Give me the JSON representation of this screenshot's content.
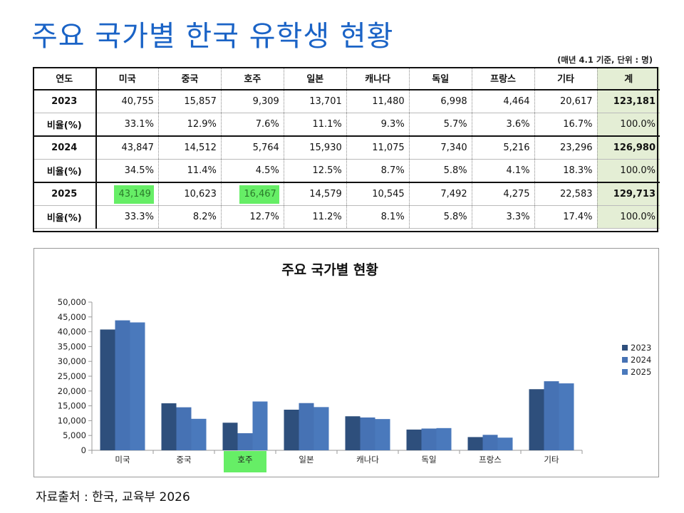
{
  "title": "주요 국가별 한국 유학생 현황",
  "note": "(매년 4.1 기준, 단위 : 명)",
  "table": {
    "headers": [
      "연도",
      "미국",
      "중국",
      "호주",
      "일본",
      "캐나다",
      "독일",
      "프랑스",
      "기타",
      "계"
    ],
    "rows": [
      {
        "label": "2023",
        "values": [
          "40,755",
          "15,857",
          "9,309",
          "13,701",
          "11,480",
          "6,998",
          "4,464",
          "20,617"
        ],
        "total": "123,181"
      },
      {
        "label": "비율(%)",
        "values": [
          "33.1%",
          "12.9%",
          "7.6%",
          "11.1%",
          "9.3%",
          "5.7%",
          "3.6%",
          "16.7%"
        ],
        "total": "100.0%"
      },
      {
        "label": "2024",
        "values": [
          "43,847",
          "14,512",
          "5,764",
          "15,930",
          "11,075",
          "7,340",
          "5,216",
          "23,296"
        ],
        "total": "126,980"
      },
      {
        "label": "비율(%)",
        "values": [
          "34.5%",
          "11.4%",
          "4.5%",
          "12.5%",
          "8.7%",
          "5.8%",
          "4.1%",
          "18.3%"
        ],
        "total": "100.0%"
      },
      {
        "label": "2025",
        "values": [
          "43,149",
          "10,623",
          "16,467",
          "14,579",
          "10,545",
          "7,492",
          "4,275",
          "22,583"
        ],
        "total": "129,713"
      },
      {
        "label": "비율(%)",
        "values": [
          "33.3%",
          "8.2%",
          "12.7%",
          "11.2%",
          "8.1%",
          "5.8%",
          "3.3%",
          "17.4%"
        ],
        "total": "100.0%"
      }
    ],
    "highlight_color": "#66ee66"
  },
  "chart_data": {
    "type": "bar",
    "title": "주요 국가별 현황",
    "categories": [
      "미국",
      "중국",
      "호주",
      "일본",
      "캐나다",
      "독일",
      "프랑스",
      "기타"
    ],
    "series": [
      {
        "name": "2023",
        "color": "#2e4f7c",
        "values": [
          40755,
          15857,
          9309,
          13701,
          11480,
          6998,
          4464,
          20617
        ]
      },
      {
        "name": "2024",
        "color": "#4672b4",
        "values": [
          43847,
          14512,
          5764,
          15930,
          11075,
          7340,
          5216,
          23296
        ]
      },
      {
        "name": "2025",
        "color": "#4a79bc",
        "values": [
          43149,
          10623,
          16467,
          14579,
          10545,
          7492,
          4275,
          22583
        ]
      }
    ],
    "ylim": [
      0,
      50000
    ],
    "yticks": [
      "0",
      "5,000",
      "10,000",
      "15,000",
      "20,000",
      "25,000",
      "30,000",
      "35,000",
      "40,000",
      "45,000",
      "50,000"
    ],
    "legend": "right",
    "highlighted_category": "호주"
  },
  "source": "자료출처 : 한국, 교육부 2026"
}
